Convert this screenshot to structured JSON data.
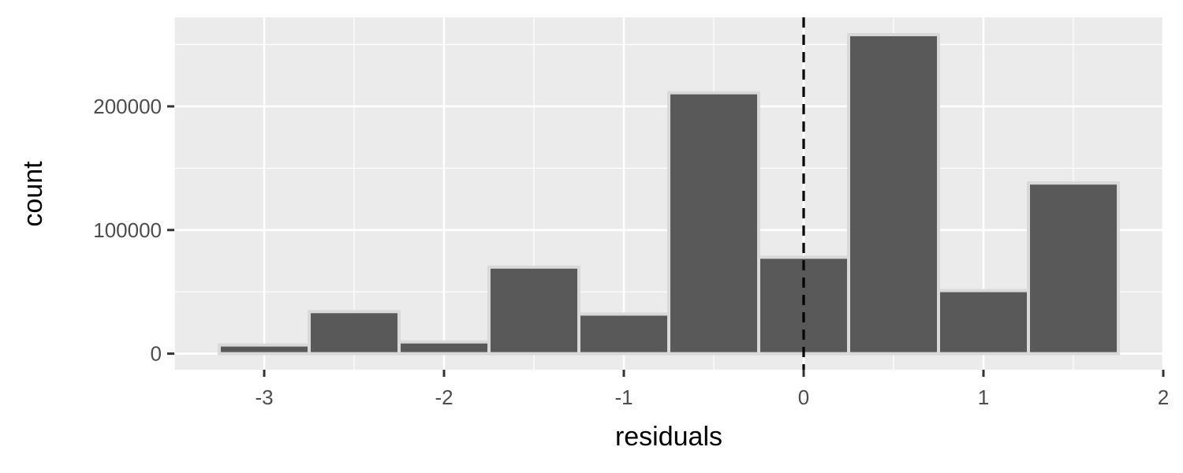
{
  "chart_data": {
    "type": "bar",
    "subtype": "histogram",
    "xlabel": "residuals",
    "ylabel": "count",
    "xlim": [
      -3.5,
      2.0
    ],
    "ylim": [
      -13000,
      272000
    ],
    "x_ticks": [
      -3,
      -2,
      -1,
      0,
      1,
      2
    ],
    "x_tick_labels": [
      "-3",
      "-2",
      "-1",
      "0",
      "1",
      "2"
    ],
    "y_ticks": [
      0,
      100000,
      200000
    ],
    "y_tick_labels": [
      "0",
      "100000",
      "200000"
    ],
    "bins": [
      {
        "x0": -3.25,
        "x1": -2.75,
        "count": 7000
      },
      {
        "x0": -2.75,
        "x1": -2.25,
        "count": 34000
      },
      {
        "x0": -2.25,
        "x1": -1.75,
        "count": 9500
      },
      {
        "x0": -1.75,
        "x1": -1.25,
        "count": 70000
      },
      {
        "x0": -1.25,
        "x1": -0.75,
        "count": 32000
      },
      {
        "x0": -0.75,
        "x1": -0.25,
        "count": 211000
      },
      {
        "x0": -0.25,
        "x1": 0.25,
        "count": 78000
      },
      {
        "x0": 0.25,
        "x1": 0.75,
        "count": 258000
      },
      {
        "x0": 0.75,
        "x1": 1.25,
        "count": 51000
      },
      {
        "x0": 1.25,
        "x1": 1.75,
        "count": 138000
      }
    ],
    "reference_line": {
      "x": 0,
      "style": "dashed",
      "color": "#000000"
    },
    "grid": true,
    "legend": "none",
    "colors": {
      "panel_background": "#ebebeb",
      "grid": "#ffffff",
      "bar_fill": "#595959",
      "bar_outline": "#d9d9d9"
    }
  }
}
